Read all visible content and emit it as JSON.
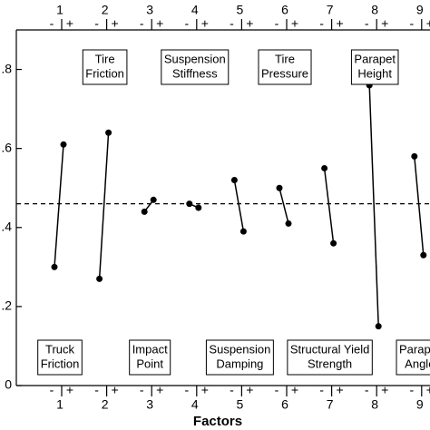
{
  "chart_data": {
    "type": "main-effects",
    "x_label": "Factors",
    "categories": [
      "1",
      "2",
      "3",
      "4",
      "5",
      "6",
      "7",
      "8",
      "9"
    ],
    "factor_labels": [
      [
        "Truck",
        "Friction"
      ],
      [
        "Tire",
        "Friction"
      ],
      [
        "Impact",
        "Point"
      ],
      [
        "Suspension",
        "Stiffness"
      ],
      [
        "Suspension",
        "Damping"
      ],
      [
        "Tire",
        "Pressure"
      ],
      [
        "Structural Yield",
        "Strength"
      ],
      [
        "Parapet",
        "Height"
      ],
      [
        "Parapet",
        "Angle"
      ]
    ],
    "series": [
      {
        "name": "-",
        "color": "#000000",
        "values": [
          0.3,
          0.27,
          0.44,
          0.46,
          0.52,
          0.5,
          0.55,
          0.76,
          0.58
        ]
      },
      {
        "name": "+",
        "color": "#000000",
        "values": [
          0.61,
          0.64,
          0.47,
          0.45,
          0.39,
          0.41,
          0.36,
          0.15,
          0.33
        ]
      }
    ],
    "mean": 0.46,
    "ylim": [
      0,
      0.9
    ],
    "yticks": [
      0,
      {
        "value": 0.2,
        "label": ".2"
      },
      {
        "value": 0.4,
        "label": ".4"
      },
      {
        "value": 0.6,
        "label": ".6"
      },
      {
        "value": 0.8,
        "label": ".8"
      }
    ]
  }
}
